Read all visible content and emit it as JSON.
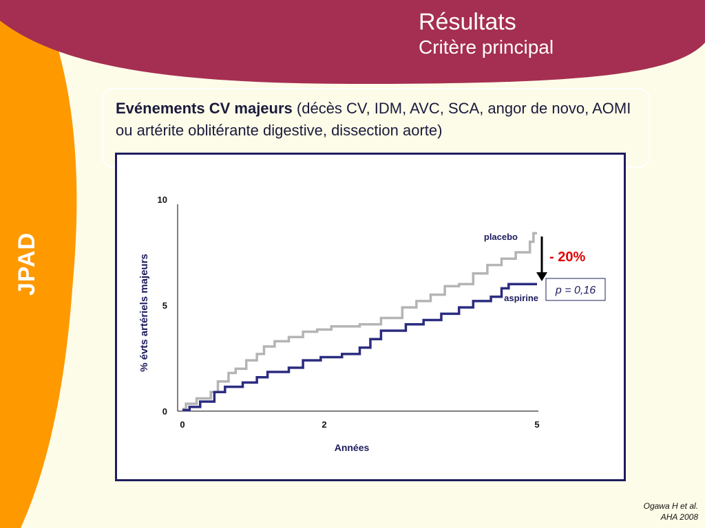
{
  "header": {
    "title": "Résultats",
    "subtitle": "Critère principal"
  },
  "sidebar": {
    "label": "JPAD"
  },
  "intro": {
    "bold": "Evénements CV majeurs",
    "rest": " (décès CV, IDM, AVC, SCA, angor de novo, AOMI ou artérite oblitérante digestive, dissection aorte)"
  },
  "reference": {
    "line1": "Ogawa H et al.",
    "line2": "AHA 2008"
  },
  "colors": {
    "header_band": "#a52f52",
    "sidebar": "#ff9900",
    "background": "#fdfce8",
    "placebo": "#b4b4b4",
    "aspirine": "#2b2b80",
    "reduction": "#e00000"
  },
  "chart_data": {
    "type": "line",
    "title": "",
    "xlabel": "Années",
    "ylabel": "% évts artériels majeurs",
    "xlim": [
      0,
      5
    ],
    "ylim": [
      0,
      10
    ],
    "xticks": [
      "0",
      "2",
      "5"
    ],
    "xtick_values": [
      0,
      2,
      5
    ],
    "yticks": [
      "0",
      "5",
      "10"
    ],
    "ytick_values": [
      0,
      5,
      10
    ],
    "grid": false,
    "series": [
      {
        "name": "placebo",
        "color": "#b4b4b4",
        "step": true,
        "points": [
          [
            0,
            0.1
          ],
          [
            0.05,
            0.35
          ],
          [
            0.2,
            0.6
          ],
          [
            0.4,
            0.9
          ],
          [
            0.5,
            1.4
          ],
          [
            0.65,
            1.8
          ],
          [
            0.75,
            2.0
          ],
          [
            0.9,
            2.4
          ],
          [
            1.05,
            2.7
          ],
          [
            1.15,
            3.05
          ],
          [
            1.3,
            3.3
          ],
          [
            1.5,
            3.5
          ],
          [
            1.7,
            3.75
          ],
          [
            1.9,
            3.85
          ],
          [
            2.1,
            4.0
          ],
          [
            2.5,
            4.1
          ],
          [
            2.8,
            4.4
          ],
          [
            3.1,
            4.9
          ],
          [
            3.3,
            5.2
          ],
          [
            3.5,
            5.5
          ],
          [
            3.7,
            5.9
          ],
          [
            3.9,
            6.0
          ],
          [
            4.1,
            6.5
          ],
          [
            4.3,
            6.9
          ],
          [
            4.5,
            7.2
          ],
          [
            4.7,
            7.5
          ],
          [
            4.9,
            8.0
          ],
          [
            4.95,
            8.4
          ],
          [
            5.0,
            8.4
          ]
        ]
      },
      {
        "name": "aspirine",
        "color": "#2b2b80",
        "step": true,
        "points": [
          [
            0,
            0.05
          ],
          [
            0.1,
            0.2
          ],
          [
            0.25,
            0.45
          ],
          [
            0.45,
            0.9
          ],
          [
            0.6,
            1.15
          ],
          [
            0.85,
            1.35
          ],
          [
            1.05,
            1.6
          ],
          [
            1.2,
            1.85
          ],
          [
            1.5,
            2.05
          ],
          [
            1.7,
            2.4
          ],
          [
            1.95,
            2.55
          ],
          [
            2.25,
            2.7
          ],
          [
            2.5,
            3.0
          ],
          [
            2.65,
            3.4
          ],
          [
            2.8,
            3.8
          ],
          [
            3.15,
            4.1
          ],
          [
            3.4,
            4.3
          ],
          [
            3.65,
            4.6
          ],
          [
            3.9,
            4.9
          ],
          [
            4.1,
            5.2
          ],
          [
            4.35,
            5.4
          ],
          [
            4.5,
            5.8
          ],
          [
            4.6,
            6.0
          ],
          [
            5.0,
            6.0
          ]
        ]
      }
    ],
    "annotations": {
      "reduction": "- 20%",
      "pvalue": "p = 0,16"
    }
  }
}
